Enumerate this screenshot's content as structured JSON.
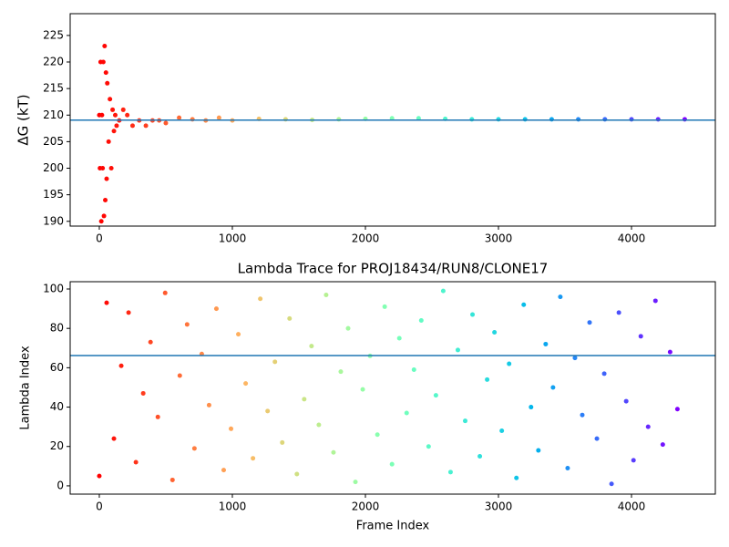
{
  "chart_data": [
    {
      "type": "scatter",
      "ylabel": "ΔG (kT)",
      "colormap": "rainbow_r",
      "x": [
        0,
        5,
        10,
        15,
        20,
        25,
        30,
        35,
        40,
        45,
        50,
        55,
        60,
        70,
        80,
        90,
        100,
        110,
        120,
        130,
        150,
        180,
        210,
        250,
        300,
        350,
        400,
        450,
        500,
        600,
        700,
        800,
        900,
        1000,
        1200,
        1400,
        1600,
        1800,
        2000,
        2200,
        2400,
        2600,
        2800,
        3000,
        3200,
        3400,
        3600,
        3800,
        4000,
        4200,
        4400
      ],
      "values": [
        210,
        200,
        220,
        190,
        210,
        200,
        220,
        191,
        223,
        194,
        218,
        198,
        216,
        205,
        213,
        200,
        211,
        207,
        210,
        208,
        209,
        211,
        210,
        208,
        209,
        208,
        209,
        209,
        208.5,
        209.5,
        209.2,
        209,
        209.5,
        209,
        209.3,
        209.2,
        209.1,
        209.2,
        209.3,
        209.4,
        209.4,
        209.3,
        209.2,
        209.2,
        209.2,
        209.2,
        209.2,
        209.2,
        209.2,
        209.2,
        209.2
      ],
      "xlim": [
        -219,
        4630
      ],
      "ylim": [
        189.1,
        229.1
      ],
      "xticks": [
        0,
        1000,
        2000,
        3000,
        4000
      ],
      "yticks": [
        190,
        195,
        200,
        205,
        210,
        215,
        220,
        225
      ],
      "hline": 209.05,
      "hline_color": "#1f77b4"
    },
    {
      "type": "scatter",
      "title": "Lambda Trace for PROJ18434/RUN8/CLONE17",
      "xlabel": "Frame Index",
      "ylabel": "Lambda Index",
      "colormap": "rainbow_r",
      "x": [
        0,
        55,
        110,
        165,
        220,
        275,
        330,
        385,
        440,
        495,
        550,
        605,
        660,
        715,
        770,
        825,
        880,
        935,
        990,
        1045,
        1100,
        1155,
        1210,
        1265,
        1320,
        1375,
        1430,
        1485,
        1540,
        1595,
        1650,
        1705,
        1760,
        1815,
        1870,
        1925,
        1980,
        2035,
        2090,
        2145,
        2200,
        2255,
        2310,
        2365,
        2420,
        2475,
        2530,
        2585,
        2640,
        2695,
        2750,
        2805,
        2860,
        2915,
        2970,
        3025,
        3080,
        3135,
        3190,
        3245,
        3300,
        3355,
        3410,
        3465,
        3520,
        3575,
        3630,
        3685,
        3740,
        3795,
        3850,
        3905,
        3960,
        4015,
        4070,
        4125,
        4180,
        4235,
        4290,
        4345
      ],
      "values": [
        5,
        93,
        24,
        61,
        88,
        12,
        47,
        73,
        35,
        98,
        3,
        56,
        82,
        19,
        67,
        41,
        90,
        8,
        29,
        77,
        52,
        14,
        95,
        38,
        63,
        22,
        85,
        6,
        44,
        71,
        31,
        97,
        17,
        58,
        80,
        2,
        49,
        66,
        26,
        91,
        11,
        75,
        37,
        59,
        84,
        20,
        46,
        99,
        7,
        69,
        33,
        87,
        15,
        54,
        78,
        28,
        62,
        4,
        92,
        40,
        18,
        72,
        50,
        96,
        9,
        65,
        36,
        83,
        24,
        57,
        1,
        88,
        43,
        13,
        76,
        30,
        94,
        21,
        68,
        39
      ],
      "xlim": [
        -219,
        4630
      ],
      "ylim": [
        -4.2,
        103.7
      ],
      "xticks": [
        0,
        1000,
        2000,
        3000,
        4000
      ],
      "yticks": [
        0,
        20,
        40,
        60,
        80,
        100
      ],
      "hline": 66.2,
      "hline_color": "#1f77b4"
    }
  ]
}
